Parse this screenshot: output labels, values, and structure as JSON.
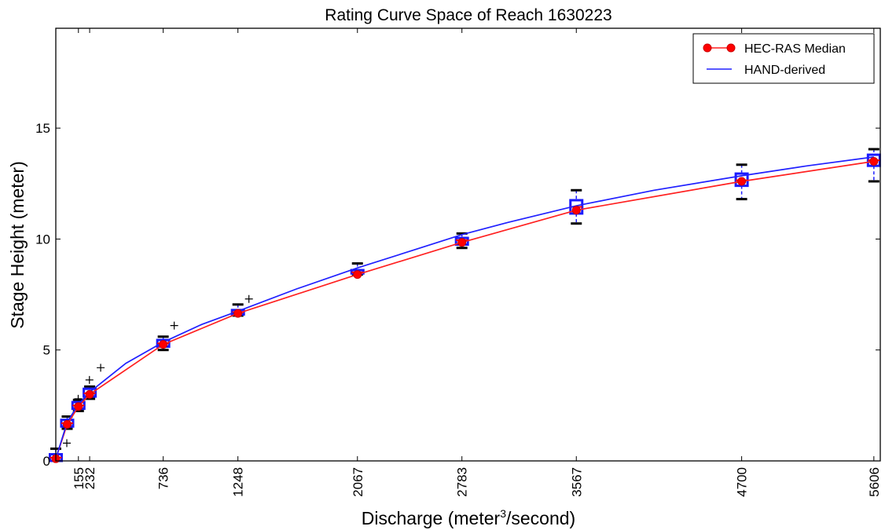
{
  "chart_data": {
    "type": "line",
    "title": "Rating Curve Space of Reach 1630223",
    "xlabel": {
      "main": "Discharge (meter",
      "sup": "3",
      "tail": "/second)"
    },
    "ylabel": "Stage Height (meter)",
    "xlim": [
      0,
      5650
    ],
    "ylim": [
      0,
      19.5
    ],
    "grid": false,
    "legend_position": "top-right",
    "x_tick_values": [
      0,
      155,
      232,
      736,
      1248,
      2067,
      2783,
      3567,
      4700,
      5606
    ],
    "x_tick_labels": [
      "0",
      "155",
      "232",
      "736",
      "1248",
      "2067",
      "2783",
      "3567",
      "4700",
      "5606"
    ],
    "y_tick_values": [
      0,
      5,
      10,
      15
    ],
    "y_tick_labels": [
      "0",
      "5",
      "10",
      "15"
    ],
    "series": [
      {
        "name": "HEC-RAS Median",
        "color": "#ff2020",
        "marker": "circle",
        "x": [
          0,
          78,
          155,
          232,
          736,
          1248,
          2067,
          2783,
          3567,
          4700,
          5606
        ],
        "y": [
          0.1,
          1.65,
          2.45,
          3.0,
          5.25,
          6.65,
          8.4,
          9.85,
          11.3,
          12.6,
          13.5
        ]
      },
      {
        "name": "HAND-derived",
        "color": "#2020ff",
        "marker": "none",
        "x": [
          0,
          78,
          155,
          232,
          480,
          736,
          1000,
          1248,
          1650,
          2067,
          2450,
          2783,
          3100,
          3567,
          4100,
          4700,
          5150,
          5606
        ],
        "y": [
          0.1,
          1.75,
          2.55,
          3.1,
          4.4,
          5.35,
          6.15,
          6.75,
          7.75,
          8.7,
          9.5,
          10.2,
          10.75,
          11.5,
          12.2,
          12.85,
          13.3,
          13.7
        ]
      }
    ],
    "boxplots": [
      {
        "x": 0,
        "min": 0.0,
        "q1": 0.0,
        "median": 0.15,
        "q3": 0.3,
        "max": 0.55,
        "outliers": [
          0.8
        ]
      },
      {
        "x": 78,
        "min": 1.45,
        "q1": 1.55,
        "median": 1.7,
        "q3": 1.85,
        "max": 2.0,
        "outliers": [
          2.8
        ]
      },
      {
        "x": 155,
        "min": 2.25,
        "q1": 2.35,
        "median": 2.5,
        "q3": 2.65,
        "max": 2.75,
        "outliers": [
          3.65
        ]
      },
      {
        "x": 232,
        "min": 2.8,
        "q1": 2.9,
        "median": 3.05,
        "q3": 3.25,
        "max": 3.35,
        "outliers": [
          4.2
        ]
      },
      {
        "x": 736,
        "min": 5.0,
        "q1": 5.15,
        "median": 5.3,
        "q3": 5.45,
        "max": 5.6,
        "outliers": [
          6.1
        ]
      },
      {
        "x": 1248,
        "min": 6.55,
        "q1": 6.6,
        "median": 6.7,
        "q3": 6.8,
        "max": 7.05,
        "outliers": [
          7.3
        ]
      },
      {
        "x": 2067,
        "min": 8.4,
        "q1": 8.45,
        "median": 8.5,
        "q3": 8.6,
        "max": 8.9,
        "outliers": []
      },
      {
        "x": 2783,
        "min": 9.6,
        "q1": 9.75,
        "median": 9.95,
        "q3": 10.05,
        "max": 10.25,
        "outliers": []
      },
      {
        "x": 3567,
        "min": 10.7,
        "q1": 11.15,
        "median": 11.45,
        "q3": 11.75,
        "max": 12.2,
        "outliers": []
      },
      {
        "x": 4700,
        "min": 11.8,
        "q1": 12.4,
        "median": 12.65,
        "q3": 12.95,
        "max": 13.35,
        "outliers": []
      },
      {
        "x": 5606,
        "min": 12.6,
        "q1": 13.3,
        "median": 13.55,
        "q3": 13.8,
        "max": 14.05,
        "outliers": []
      }
    ]
  }
}
